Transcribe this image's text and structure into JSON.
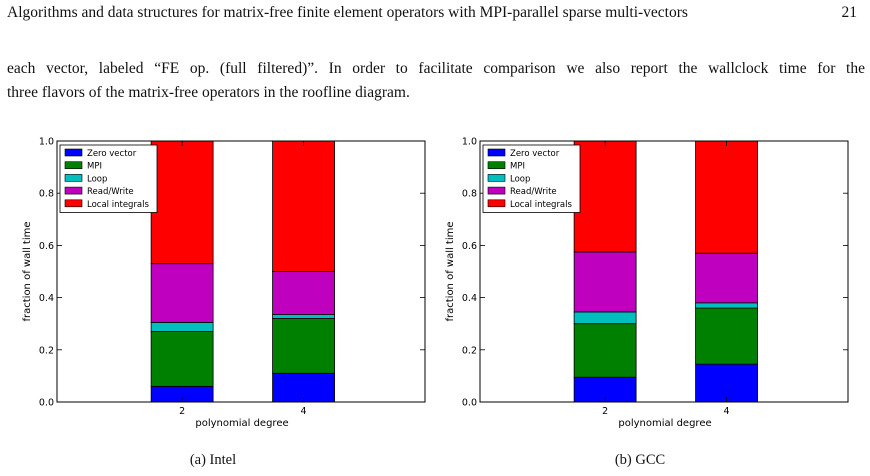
{
  "running_head": {
    "title": "Algorithms and data structures for matrix-free finite element operators with MPI-parallel sparse multi-vectors",
    "page_number": "21"
  },
  "body_text": {
    "line1": "each vector, labeled “FE op. (full filtered)”. In order to facilitate comparison we also report the wallclock time for the",
    "line2": "three flavors of the matrix-free operators in the roofline diagram."
  },
  "chart_data": [
    {
      "type": "bar",
      "stacked": true,
      "title": "",
      "caption": "(a) Intel",
      "xlabel": "polynomial degree",
      "ylabel": "fraction of wall time",
      "categories": [
        "2",
        "4"
      ],
      "ylim": [
        0,
        1
      ],
      "yticks": [
        "0.0",
        "0.2",
        "0.4",
        "0.6",
        "0.8",
        "1.0"
      ],
      "legend_position": "top-left",
      "series": [
        {
          "name": "Zero vector",
          "color": "#0000ff",
          "values": [
            0.06,
            0.11
          ]
        },
        {
          "name": "MPI",
          "color": "#008000",
          "values": [
            0.21,
            0.21
          ]
        },
        {
          "name": "Loop",
          "color": "#00bfbf",
          "values": [
            0.035,
            0.015
          ]
        },
        {
          "name": "Read/Write",
          "color": "#bf00bf",
          "values": [
            0.225,
            0.165
          ]
        },
        {
          "name": "Local integrals",
          "color": "#ff0000",
          "values": [
            0.47,
            0.5
          ]
        }
      ]
    },
    {
      "type": "bar",
      "stacked": true,
      "title": "",
      "caption": "(b) GCC",
      "xlabel": "polynomial degree",
      "ylabel": "fraction of wall time",
      "categories": [
        "2",
        "4"
      ],
      "ylim": [
        0,
        1
      ],
      "yticks": [
        "0.0",
        "0.2",
        "0.4",
        "0.6",
        "0.8",
        "1.0"
      ],
      "legend_position": "top-left",
      "series": [
        {
          "name": "Zero vector",
          "color": "#0000ff",
          "values": [
            0.095,
            0.145
          ]
        },
        {
          "name": "MPI",
          "color": "#008000",
          "values": [
            0.205,
            0.215
          ]
        },
        {
          "name": "Loop",
          "color": "#00bfbf",
          "values": [
            0.045,
            0.02
          ]
        },
        {
          "name": "Read/Write",
          "color": "#bf00bf",
          "values": [
            0.23,
            0.19
          ]
        },
        {
          "name": "Local integrals",
          "color": "#ff0000",
          "values": [
            0.425,
            0.43
          ]
        }
      ]
    }
  ]
}
